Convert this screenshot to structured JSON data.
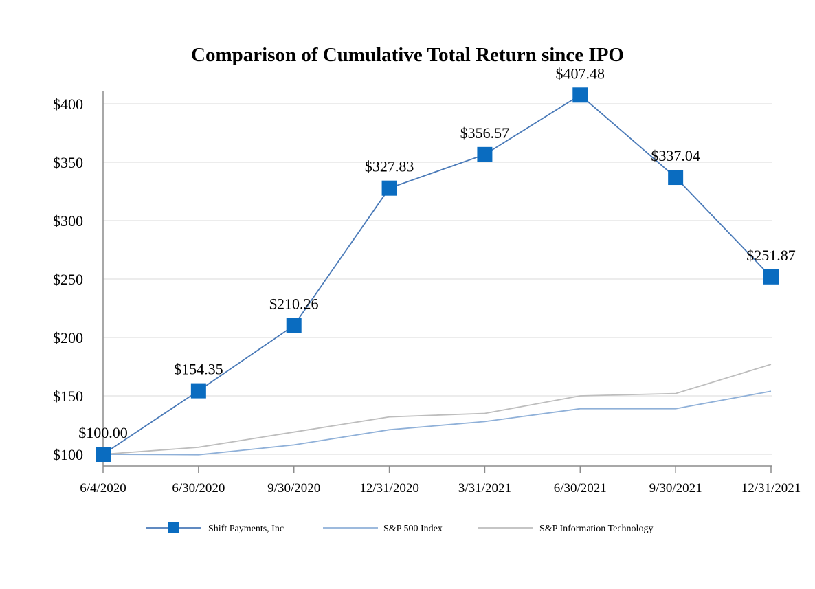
{
  "chart_data": {
    "type": "line",
    "title": "Comparison of Cumulative Total Return since IPO",
    "xlabel": "",
    "ylabel": "",
    "categories": [
      "6/4/2020",
      "6/30/2020",
      "9/30/2020",
      "12/31/2020",
      "3/31/2021",
      "6/30/2021",
      "9/30/2021",
      "12/31/2021"
    ],
    "ylim": [
      95,
      410
    ],
    "yticks": [
      100,
      150,
      200,
      250,
      300,
      350,
      400
    ],
    "ytick_labels": [
      "$100",
      "$150",
      "$200",
      "$250",
      "$300",
      "$350",
      "$400"
    ],
    "grid": true,
    "legend_position": "bottom",
    "series": [
      {
        "name": "Shift Payments, Inc",
        "color": "#4a7ab8",
        "marker_color": "#0a6cc0",
        "marker": "square",
        "values": [
          100.0,
          154.35,
          210.26,
          327.83,
          356.57,
          407.48,
          337.04,
          251.87
        ],
        "data_labels": [
          "$100.00",
          "$154.35",
          "$210.26",
          "$327.83",
          "$356.57",
          "$407.48",
          "$337.04",
          "$251.87"
        ]
      },
      {
        "name": "S&P 500 Index",
        "color": "#8fb0d8",
        "marker": "none",
        "values": [
          100,
          99.6,
          108,
          121,
          128,
          139,
          139,
          154
        ]
      },
      {
        "name": "S&P Information Technology",
        "color": "#bdbdbd",
        "marker": "none",
        "values": [
          100,
          106,
          119,
          132,
          135,
          150,
          152,
          177
        ]
      }
    ]
  }
}
